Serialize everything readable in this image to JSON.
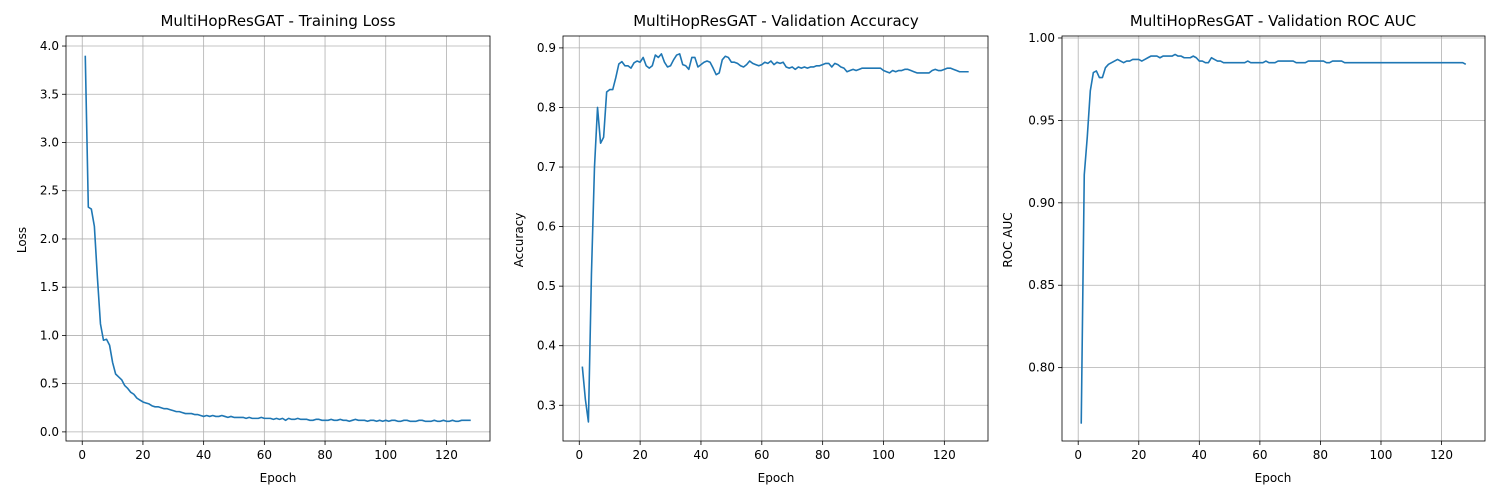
{
  "chart_data": [
    {
      "type": "line",
      "title": "MultiHopResGAT - Training Loss",
      "xlabel": "Epoch",
      "ylabel": "Loss",
      "xlim": [
        -5.35,
        134.35
      ],
      "ylim": [
        -0.0945,
        4.104
      ],
      "xticks": [
        0,
        20,
        40,
        60,
        80,
        100,
        120
      ],
      "yticks": [
        0.0,
        0.5,
        1.0,
        1.5,
        2.0,
        2.5,
        3.0,
        3.5,
        4.0
      ],
      "xtick_labels": [
        "0",
        "20",
        "40",
        "60",
        "80",
        "100",
        "120"
      ],
      "ytick_labels": [
        "0.0",
        "0.5",
        "1.0",
        "1.5",
        "2.0",
        "2.5",
        "3.0",
        "3.5",
        "4.0"
      ],
      "grid": true,
      "line_color": "#1f77b4",
      "series": [
        {
          "x": [
            1,
            2,
            3,
            4,
            5,
            6,
            7,
            8,
            9,
            10,
            11,
            12,
            13,
            14,
            15,
            16,
            17,
            18,
            19,
            20,
            21,
            22,
            23,
            24,
            25,
            26,
            27,
            28,
            29,
            30,
            31,
            32,
            33,
            34,
            35,
            36,
            37,
            38,
            39,
            40,
            41,
            42,
            43,
            44,
            45,
            46,
            47,
            48,
            49,
            50,
            51,
            52,
            53,
            54,
            55,
            56,
            57,
            58,
            59,
            60,
            61,
            62,
            63,
            64,
            65,
            66,
            67,
            68,
            69,
            70,
            71,
            72,
            73,
            74,
            75,
            76,
            77,
            78,
            79,
            80,
            81,
            82,
            83,
            84,
            85,
            86,
            87,
            88,
            89,
            90,
            91,
            92,
            93,
            94,
            95,
            96,
            97,
            98,
            99,
            100,
            101,
            102,
            103,
            104,
            105,
            106,
            107,
            108,
            109,
            110,
            111,
            112,
            113,
            114,
            115,
            116,
            117,
            118,
            119,
            120,
            121,
            122,
            123,
            124,
            125,
            126,
            127,
            128
          ],
          "values": [
            3.9,
            2.33,
            2.31,
            2.13,
            1.6,
            1.12,
            0.95,
            0.96,
            0.9,
            0.72,
            0.6,
            0.57,
            0.54,
            0.48,
            0.45,
            0.41,
            0.39,
            0.35,
            0.33,
            0.31,
            0.3,
            0.29,
            0.27,
            0.26,
            0.26,
            0.25,
            0.24,
            0.24,
            0.23,
            0.22,
            0.21,
            0.21,
            0.2,
            0.19,
            0.19,
            0.19,
            0.18,
            0.18,
            0.17,
            0.16,
            0.17,
            0.16,
            0.17,
            0.16,
            0.16,
            0.17,
            0.16,
            0.15,
            0.16,
            0.15,
            0.15,
            0.15,
            0.15,
            0.14,
            0.15,
            0.14,
            0.14,
            0.14,
            0.15,
            0.14,
            0.14,
            0.14,
            0.13,
            0.14,
            0.13,
            0.14,
            0.12,
            0.14,
            0.13,
            0.13,
            0.14,
            0.13,
            0.13,
            0.13,
            0.12,
            0.12,
            0.13,
            0.13,
            0.12,
            0.12,
            0.12,
            0.13,
            0.12,
            0.12,
            0.13,
            0.12,
            0.12,
            0.11,
            0.12,
            0.13,
            0.12,
            0.12,
            0.12,
            0.11,
            0.12,
            0.12,
            0.11,
            0.12,
            0.11,
            0.12,
            0.11,
            0.12,
            0.12,
            0.11,
            0.11,
            0.12,
            0.12,
            0.11,
            0.11,
            0.11,
            0.12,
            0.12,
            0.11,
            0.11,
            0.11,
            0.12,
            0.11,
            0.11,
            0.12,
            0.11,
            0.11,
            0.12,
            0.11,
            0.11,
            0.12,
            0.12,
            0.12,
            0.12
          ]
        }
      ]
    },
    {
      "type": "line",
      "title": "MultiHopResGAT - Validation Accuracy",
      "xlabel": "Epoch",
      "ylabel": "Accuracy",
      "xlim": [
        -5.35,
        134.35
      ],
      "ylim": [
        0.24,
        0.92
      ],
      "xticks": [
        0,
        20,
        40,
        60,
        80,
        100,
        120
      ],
      "yticks": [
        0.3,
        0.4,
        0.5,
        0.6,
        0.7,
        0.8,
        0.9
      ],
      "xtick_labels": [
        "0",
        "20",
        "40",
        "60",
        "80",
        "100",
        "120"
      ],
      "ytick_labels": [
        "0.3",
        "0.4",
        "0.5",
        "0.6",
        "0.7",
        "0.8",
        "0.9"
      ],
      "grid": true,
      "line_color": "#1f77b4",
      "series": [
        {
          "x": [
            1,
            2,
            3,
            4,
            5,
            6,
            7,
            8,
            9,
            10,
            11,
            12,
            13,
            14,
            15,
            16,
            17,
            18,
            19,
            20,
            21,
            22,
            23,
            24,
            25,
            26,
            27,
            28,
            29,
            30,
            31,
            32,
            33,
            34,
            35,
            36,
            37,
            38,
            39,
            40,
            41,
            42,
            43,
            44,
            45,
            46,
            47,
            48,
            49,
            50,
            51,
            52,
            53,
            54,
            55,
            56,
            57,
            58,
            59,
            60,
            61,
            62,
            63,
            64,
            65,
            66,
            67,
            68,
            69,
            70,
            71,
            72,
            73,
            74,
            75,
            76,
            77,
            78,
            79,
            80,
            81,
            82,
            83,
            84,
            85,
            86,
            87,
            88,
            89,
            90,
            91,
            92,
            93,
            94,
            95,
            96,
            97,
            98,
            99,
            100,
            101,
            102,
            103,
            104,
            105,
            106,
            107,
            108,
            109,
            110,
            111,
            112,
            113,
            114,
            115,
            116,
            117,
            118,
            119,
            120,
            121,
            122,
            123,
            124,
            125,
            126,
            127,
            128
          ],
          "values": [
            0.365,
            0.31,
            0.272,
            0.52,
            0.7,
            0.8,
            0.74,
            0.75,
            0.826,
            0.83,
            0.83,
            0.85,
            0.873,
            0.877,
            0.87,
            0.87,
            0.866,
            0.875,
            0.878,
            0.876,
            0.884,
            0.87,
            0.866,
            0.87,
            0.888,
            0.884,
            0.89,
            0.876,
            0.868,
            0.87,
            0.88,
            0.888,
            0.89,
            0.872,
            0.87,
            0.864,
            0.884,
            0.884,
            0.868,
            0.872,
            0.876,
            0.878,
            0.876,
            0.866,
            0.855,
            0.858,
            0.88,
            0.886,
            0.884,
            0.876,
            0.876,
            0.874,
            0.87,
            0.868,
            0.872,
            0.878,
            0.874,
            0.872,
            0.87,
            0.872,
            0.876,
            0.874,
            0.878,
            0.872,
            0.876,
            0.874,
            0.876,
            0.868,
            0.866,
            0.868,
            0.864,
            0.868,
            0.866,
            0.868,
            0.866,
            0.868,
            0.868,
            0.87,
            0.87,
            0.872,
            0.874,
            0.874,
            0.868,
            0.874,
            0.872,
            0.868,
            0.866,
            0.86,
            0.862,
            0.864,
            0.862,
            0.864,
            0.866,
            0.866,
            0.866,
            0.866,
            0.866,
            0.866,
            0.866,
            0.862,
            0.86,
            0.858,
            0.862,
            0.86,
            0.862,
            0.862,
            0.864,
            0.864,
            0.862,
            0.86,
            0.858,
            0.858,
            0.858,
            0.858,
            0.858,
            0.862,
            0.864,
            0.862,
            0.862,
            0.864,
            0.866,
            0.866,
            0.864,
            0.862,
            0.86,
            0.86,
            0.86,
            0.86
          ]
        }
      ]
    },
    {
      "type": "line",
      "title": "MultiHopResGAT - Validation ROC AUC",
      "xlabel": "Epoch",
      "ylabel": "ROC AUC",
      "xlim": [
        -5.35,
        134.35
      ],
      "ylim": [
        0.7555,
        1.0012
      ],
      "xticks": [
        0,
        20,
        40,
        60,
        80,
        100,
        120
      ],
      "yticks": [
        0.8,
        0.85,
        0.9,
        0.95,
        1.0
      ],
      "xtick_labels": [
        "0",
        "20",
        "40",
        "60",
        "80",
        "100",
        "120"
      ],
      "ytick_labels": [
        "0.80",
        "0.85",
        "0.90",
        "0.95",
        "1.00"
      ],
      "grid": true,
      "line_color": "#1f77b4",
      "series": [
        {
          "x": [
            1,
            2,
            3,
            4,
            5,
            6,
            7,
            8,
            9,
            10,
            11,
            12,
            13,
            14,
            15,
            16,
            17,
            18,
            19,
            20,
            21,
            22,
            23,
            24,
            25,
            26,
            27,
            28,
            29,
            30,
            31,
            32,
            33,
            34,
            35,
            36,
            37,
            38,
            39,
            40,
            41,
            42,
            43,
            44,
            45,
            46,
            47,
            48,
            49,
            50,
            51,
            52,
            53,
            54,
            55,
            56,
            57,
            58,
            59,
            60,
            61,
            62,
            63,
            64,
            65,
            66,
            67,
            68,
            69,
            70,
            71,
            72,
            73,
            74,
            75,
            76,
            77,
            78,
            79,
            80,
            81,
            82,
            83,
            84,
            85,
            86,
            87,
            88,
            89,
            90,
            91,
            92,
            93,
            94,
            95,
            96,
            97,
            98,
            99,
            100,
            101,
            102,
            103,
            104,
            105,
            106,
            107,
            108,
            109,
            110,
            111,
            112,
            113,
            114,
            115,
            116,
            117,
            118,
            119,
            120,
            121,
            122,
            123,
            124,
            125,
            126,
            127,
            128
          ],
          "values": [
            0.766,
            0.917,
            0.94,
            0.968,
            0.979,
            0.98,
            0.976,
            0.976,
            0.982,
            0.984,
            0.985,
            0.986,
            0.987,
            0.986,
            0.985,
            0.986,
            0.986,
            0.987,
            0.987,
            0.987,
            0.986,
            0.987,
            0.988,
            0.989,
            0.989,
            0.989,
            0.988,
            0.989,
            0.989,
            0.989,
            0.989,
            0.99,
            0.989,
            0.989,
            0.988,
            0.988,
            0.988,
            0.989,
            0.988,
            0.986,
            0.986,
            0.985,
            0.985,
            0.988,
            0.987,
            0.986,
            0.986,
            0.985,
            0.985,
            0.985,
            0.985,
            0.985,
            0.985,
            0.985,
            0.985,
            0.986,
            0.985,
            0.985,
            0.985,
            0.985,
            0.985,
            0.986,
            0.985,
            0.985,
            0.985,
            0.986,
            0.986,
            0.986,
            0.986,
            0.986,
            0.986,
            0.985,
            0.985,
            0.985,
            0.985,
            0.986,
            0.986,
            0.986,
            0.986,
            0.986,
            0.986,
            0.985,
            0.985,
            0.986,
            0.986,
            0.986,
            0.986,
            0.985,
            0.985,
            0.985,
            0.985,
            0.985,
            0.985,
            0.985,
            0.985,
            0.985,
            0.985,
            0.985,
            0.985,
            0.985,
            0.985,
            0.985,
            0.985,
            0.985,
            0.985,
            0.985,
            0.985,
            0.985,
            0.985,
            0.985,
            0.985,
            0.985,
            0.985,
            0.985,
            0.985,
            0.985,
            0.985,
            0.985,
            0.985,
            0.985,
            0.985,
            0.985,
            0.985,
            0.985,
            0.985,
            0.985,
            0.985,
            0.984
          ]
        }
      ]
    }
  ]
}
